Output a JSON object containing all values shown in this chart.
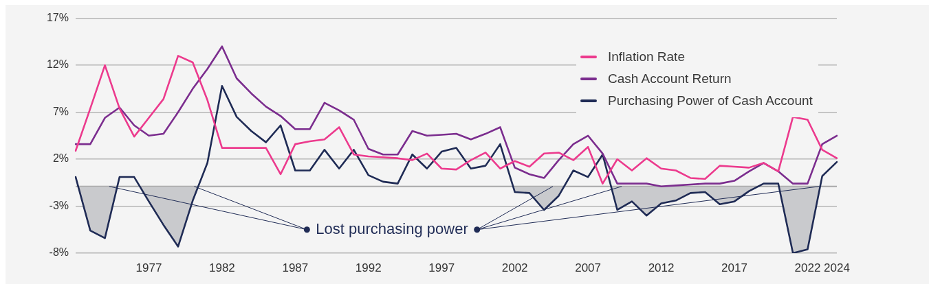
{
  "chart_data": {
    "type": "line",
    "categories": [
      null,
      null,
      null,
      null,
      null,
      "1977",
      null,
      null,
      null,
      null,
      "1982",
      null,
      null,
      null,
      null,
      "1987",
      null,
      null,
      null,
      null,
      "1992",
      null,
      null,
      null,
      null,
      "1997",
      null,
      null,
      null,
      null,
      "2002",
      null,
      null,
      null,
      null,
      "2007",
      null,
      null,
      null,
      null,
      "2012",
      null,
      null,
      null,
      null,
      "2017",
      null,
      null,
      null,
      null,
      "2022",
      null,
      "2024"
    ],
    "series": [
      {
        "name": "Inflation Rate",
        "color": "#ec3a8d",
        "values": [
          2.9,
          7.4,
          12.0,
          7.4,
          4.4,
          6.4,
          8.4,
          13.0,
          12.3,
          8.3,
          3.2,
          3.2,
          3.2,
          3.2,
          0.4,
          3.6,
          3.9,
          4.1,
          5.4,
          2.5,
          2.3,
          2.2,
          2.1,
          1.9,
          2.6,
          1.0,
          0.9,
          1.9,
          2.7,
          1.0,
          1.8,
          1.2,
          2.6,
          2.7,
          1.9,
          3.3,
          -0.6,
          2.0,
          0.8,
          2.1,
          1.0,
          0.8,
          0.0,
          -0.1,
          1.3,
          1.2,
          1.1,
          1.6,
          0.7,
          6.5,
          6.2,
          3.0,
          2.1
        ]
      },
      {
        "name": "Cash Account Return",
        "color": "#7b2d8e",
        "values": [
          3.6,
          3.6,
          6.4,
          7.5,
          5.6,
          4.5,
          4.7,
          7.0,
          9.5,
          11.6,
          14.0,
          10.6,
          9.0,
          7.6,
          6.6,
          5.2,
          5.2,
          8.0,
          7.2,
          6.2,
          3.1,
          2.5,
          2.5,
          5.0,
          4.5,
          4.6,
          4.7,
          4.1,
          4.7,
          5.4,
          1.1,
          0.4,
          0.0,
          1.9,
          3.6,
          4.5,
          2.6,
          -0.6,
          -0.6,
          -0.6,
          -0.9,
          -0.8,
          -0.7,
          -0.6,
          -0.6,
          -0.3,
          0.7,
          1.6,
          0.7,
          -0.6,
          -0.6,
          3.6,
          4.5
        ]
      },
      {
        "name": "Purchasing Power of Cash Account",
        "color": "#1f2b55",
        "values": [
          0.1,
          -5.6,
          -6.4,
          0.1,
          0.1,
          -2.5,
          -5.0,
          -7.3,
          -2.4,
          1.6,
          9.8,
          6.5,
          5.0,
          3.8,
          5.6,
          0.8,
          0.8,
          3.0,
          1.0,
          3.0,
          0.3,
          -0.4,
          -0.6,
          2.5,
          1.0,
          2.8,
          3.2,
          1.0,
          1.3,
          3.6,
          -1.5,
          -1.6,
          -3.4,
          -1.9,
          0.8,
          0.1,
          2.5,
          -3.4,
          -2.5,
          -4.0,
          -2.7,
          -2.4,
          -1.6,
          -1.5,
          -2.8,
          -2.5,
          -1.4,
          -0.6,
          -0.6,
          -8.0,
          -7.6,
          0.2,
          1.7
        ]
      }
    ],
    "ylim": [
      -8,
      17
    ],
    "yticks": [
      {
        "value": -8,
        "label": "-8%"
      },
      {
        "value": -3,
        "label": "-3%"
      },
      {
        "value": 2,
        "label": "2%"
      },
      {
        "value": 7,
        "label": "7%"
      },
      {
        "value": 12,
        "label": "12%"
      },
      {
        "value": 17,
        "label": "17%"
      }
    ],
    "ref_lines": [
      {
        "axis": "y",
        "value": -0.9,
        "color": "#a3a3a3"
      }
    ],
    "annotations": [
      {
        "text": "Lost purchasing power",
        "y": -0.9
      }
    ],
    "grid": "y",
    "legend": "top right",
    "marker": "none",
    "line_style": "solid"
  }
}
